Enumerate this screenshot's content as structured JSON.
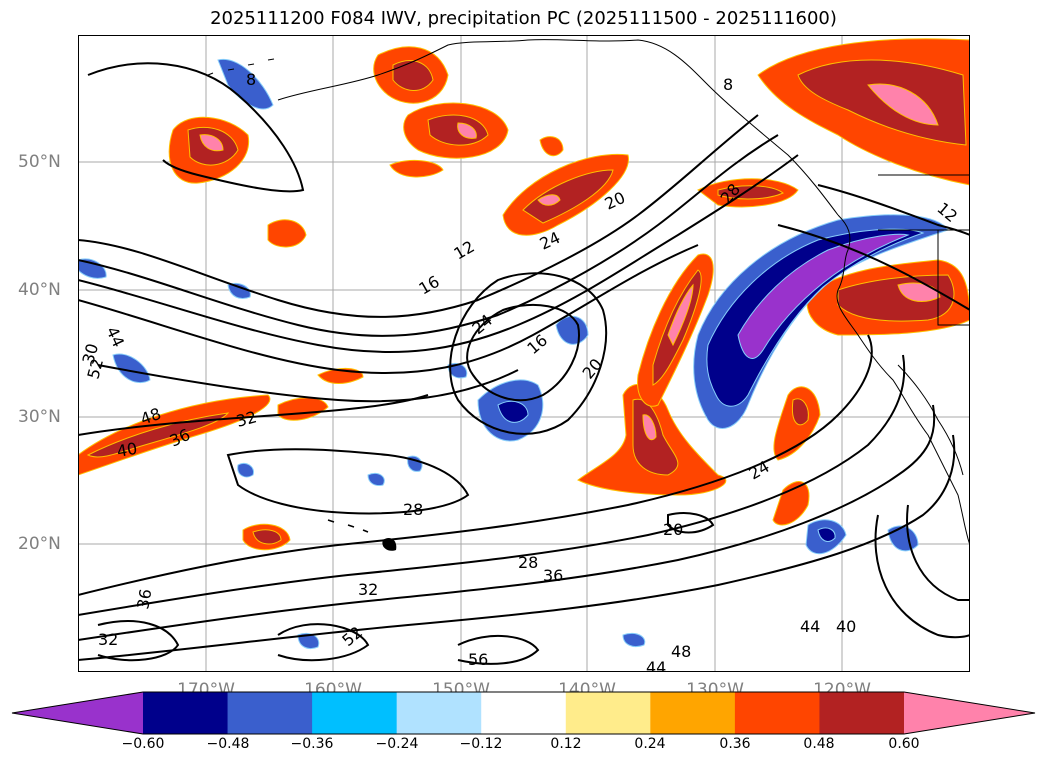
{
  "title": "2025111200 F084 IWV, precipitation PC (2025111500 - 2025111600)",
  "latitude_labels": [
    "50°N",
    "40°N",
    "30°N",
    "20°N"
  ],
  "longitude_labels": [
    "170°W",
    "160°W",
    "150°W",
    "140°W",
    "130°W",
    "120°W"
  ],
  "colorbar": {
    "ticks": [
      "−0.60",
      "−0.48",
      "−0.36",
      "−0.24",
      "−0.12",
      "0.12",
      "0.24",
      "0.36",
      "0.48",
      "0.60"
    ],
    "colors": [
      "#9932cc",
      "#00008b",
      "#3a5fcd",
      "#00bfff",
      "#b0e2ff",
      "#ffffff",
      "#ffec8b",
      "#ffa500",
      "#ff4500",
      "#b22222",
      "#ff82ab"
    ]
  },
  "contour_labels": [
    "8",
    "8",
    "12",
    "12",
    "16",
    "16",
    "20",
    "20",
    "20",
    "24",
    "24",
    "24",
    "28",
    "28",
    "28",
    "30",
    "32",
    "32",
    "32",
    "36",
    "36",
    "36",
    "40",
    "40",
    "44",
    "44",
    "44",
    "48",
    "48",
    "52",
    "52",
    "56"
  ]
}
